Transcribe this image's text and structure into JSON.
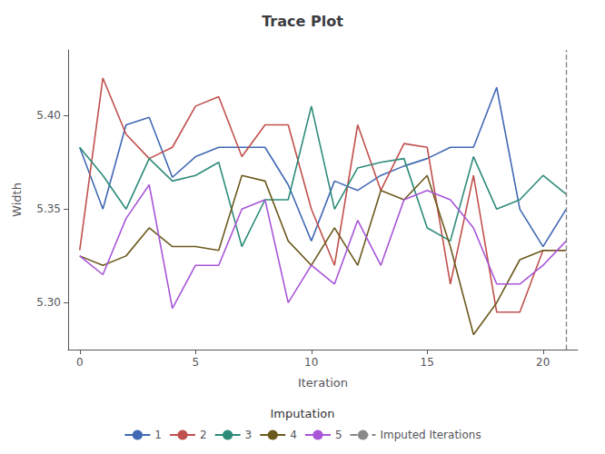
{
  "chart_data": {
    "type": "line",
    "title": "Trace Plot",
    "x_label": "Iteration",
    "y_label": "Width",
    "x": [
      0,
      1,
      2,
      3,
      4,
      5,
      6,
      7,
      8,
      9,
      10,
      11,
      12,
      13,
      14,
      15,
      16,
      17,
      18,
      19,
      20,
      21
    ],
    "xlim": [
      -0.5,
      21.5
    ],
    "xticks": [
      0,
      5,
      10,
      15,
      20
    ],
    "ylim": [
      5.275,
      5.435
    ],
    "yticks": [
      {
        "value": 5.3,
        "label": "5.30"
      },
      5.35,
      {
        "value": 5.4,
        "label": "5.40"
      }
    ],
    "grid": false,
    "legend": "bottom",
    "legend_title": "Imputation",
    "series": [
      {
        "name": "1",
        "color": "#4169B4",
        "values": [
          5.383,
          5.35,
          5.395,
          5.399,
          5.367,
          5.378,
          5.383,
          5.383,
          5.383,
          5.363,
          5.333,
          5.365,
          5.36,
          5.368,
          5.373,
          5.377,
          5.383,
          5.383,
          5.415,
          5.35,
          5.33,
          5.35
        ]
      },
      {
        "name": "2",
        "color": "#C0504D",
        "values": [
          5.328,
          5.42,
          5.39,
          5.377,
          5.383,
          5.405,
          5.41,
          5.378,
          5.395,
          5.395,
          5.35,
          5.32,
          5.395,
          5.36,
          5.385,
          5.383,
          5.31,
          5.368,
          5.295,
          5.295,
          5.328,
          5.328
        ]
      },
      {
        "name": "3",
        "color": "#2E8B7A",
        "values": [
          5.383,
          5.368,
          5.35,
          5.377,
          5.365,
          5.368,
          5.375,
          5.33,
          5.355,
          5.355,
          5.405,
          5.35,
          5.372,
          5.375,
          5.377,
          5.34,
          5.333,
          5.378,
          5.35,
          5.355,
          5.368,
          5.358
        ]
      },
      {
        "name": "4",
        "color": "#6B5A1E",
        "values": [
          5.325,
          5.32,
          5.325,
          5.34,
          5.33,
          5.33,
          5.328,
          5.368,
          5.365,
          5.333,
          5.32,
          5.34,
          5.32,
          5.36,
          5.355,
          5.368,
          5.33,
          5.283,
          5.3,
          5.323,
          5.328,
          5.328
        ]
      },
      {
        "name": "5",
        "color": "#A855D8",
        "values": [
          5.325,
          5.315,
          5.345,
          5.363,
          5.297,
          5.32,
          5.32,
          5.35,
          5.355,
          5.3,
          5.32,
          5.31,
          5.344,
          5.32,
          5.355,
          5.36,
          5.355,
          5.34,
          5.31,
          5.31,
          5.32,
          5.333
        ]
      }
    ],
    "vline": {
      "name": "Imputed Iterations",
      "x": 21,
      "color": "#888888",
      "line_style": "dashed"
    }
  }
}
